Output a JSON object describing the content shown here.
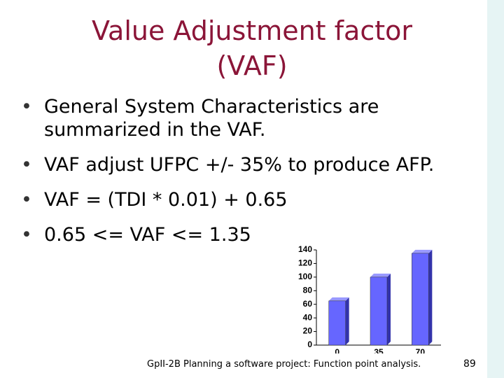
{
  "title": [
    "Value Adjustment factor",
    "(VAF)"
  ],
  "bullets": [
    "General System Characteristics are summarized in the VAF.",
    "VAF adjust UFPC +/- 35% to produce AFP.",
    "VAF = (TDI * 0.01) + 0.65",
    "0.65 <= VAF <= 1.35"
  ],
  "chart_data": {
    "type": "bar",
    "categories": [
      "0",
      "35",
      "70"
    ],
    "values": [
      65,
      100,
      135
    ],
    "color": "#6666ff",
    "ylim": [
      0,
      140
    ],
    "yticks": [
      0,
      20,
      40,
      60,
      80,
      100,
      120,
      140
    ]
  },
  "footer": "GpII-2B Planning a software project: Function point analysis.",
  "page_number": "89"
}
